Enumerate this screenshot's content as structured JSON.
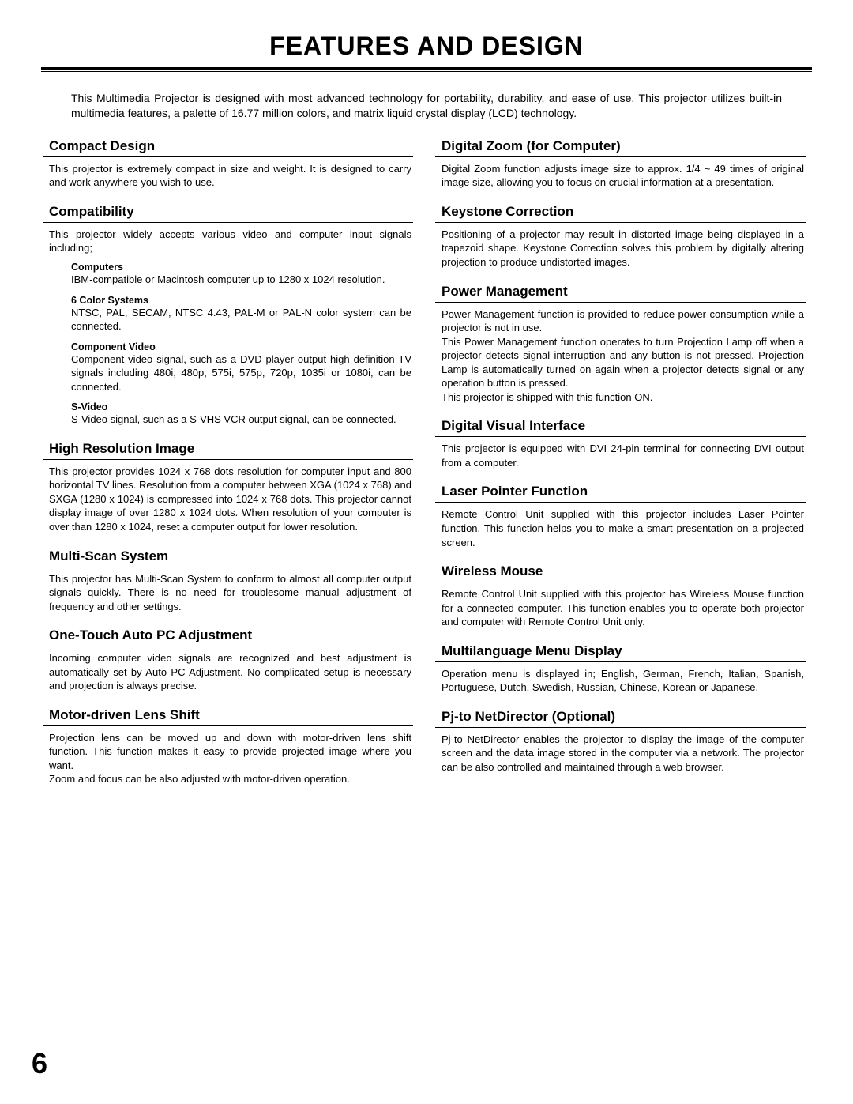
{
  "page_number": "6",
  "title": "FEATURES AND DESIGN",
  "intro": "This Multimedia Projector is designed with most advanced technology for portability, durability, and ease of use.  This projector utilizes built-in multimedia features, a palette of 16.77 million colors, and matrix liquid crystal display (LCD) technology.",
  "left": [
    {
      "heading": "Compact Design",
      "body": "This projector is extremely compact in size and weight.  It is designed to carry and work anywhere you wish to use."
    },
    {
      "heading": "Compatibility",
      "body": "This projector widely accepts various video and computer input signals including;",
      "subs": [
        {
          "title": "Computers",
          "body": "IBM-compatible or Macintosh computer up to 1280 x 1024 resolution."
        },
        {
          "title": "6 Color Systems",
          "body": "NTSC, PAL, SECAM, NTSC 4.43, PAL-M or PAL-N color system can be connected."
        },
        {
          "title": "Component Video",
          "body": "Component video signal, such as a DVD player output high definition TV signals including 480i, 480p, 575i, 575p, 720p, 1035i or 1080i, can be connected."
        },
        {
          "title": "S-Video",
          "body": "S-Video signal, such as a S-VHS VCR output signal, can be connected."
        }
      ]
    },
    {
      "heading": "High Resolution Image",
      "body": "This projector provides 1024 x 768 dots resolution for computer input and 800 horizontal TV lines.  Resolution from a computer between XGA (1024 x 768) and SXGA (1280 x 1024) is compressed into 1024 x 768 dots.  This projector cannot display image of over 1280 x 1024 dots.  When resolution of your computer is over than 1280 x 1024, reset a computer output for lower resolution."
    },
    {
      "heading": "Multi-Scan System",
      "body": "This projector has Multi-Scan System to conform to almost all computer output signals quickly.  There is no need for troublesome manual adjustment of frequency and other settings."
    },
    {
      "heading": "One-Touch Auto PC Adjustment",
      "body": "Incoming computer video signals are recognized and best adjustment is automatically set by Auto PC Adjustment.  No complicated setup is necessary and projection is always precise."
    },
    {
      "heading": "Motor-driven Lens Shift",
      "body": "Projection lens can be moved up and down with motor-driven lens shift function.  This function makes it easy to provide projected image where you want.\nZoom and focus can be also adjusted with motor-driven operation."
    }
  ],
  "right": [
    {
      "heading": "Digital Zoom (for Computer)",
      "body": "Digital Zoom function adjusts image size to approx. 1/4 ~ 49 times of original image size, allowing you to focus on crucial information at a presentation."
    },
    {
      "heading": "Keystone Correction",
      "body": "Positioning of a projector may result in distorted image being displayed in a trapezoid shape.  Keystone Correction solves this problem by digitally altering projection to produce undistorted images."
    },
    {
      "heading": "Power Management",
      "body": "Power Management function is provided to reduce power consumption while a projector is not in use.\nThis Power Management function operates to turn Projection Lamp off when a projector detects signal interruption and any button is not pressed.  Projection Lamp is automatically turned on again when a projector detects signal or any operation button is pressed.\nThis projector is shipped with this function ON."
    },
    {
      "heading": "Digital Visual Interface",
      "body": "This projector is equipped with DVI 24-pin terminal for connecting DVI output from a computer."
    },
    {
      "heading": "Laser Pointer Function",
      "body": "Remote Control Unit supplied with this projector includes Laser Pointer function.  This function helps you to make a smart presentation on a projected screen."
    },
    {
      "heading": "Wireless Mouse",
      "body": "Remote Control Unit supplied with this projector has Wireless Mouse function for a connected computer.  This function enables you to operate both projector and computer with Remote Control Unit only."
    },
    {
      "heading": "Multilanguage Menu Display",
      "body": "Operation menu is displayed in; English, German, French, Italian, Spanish, Portuguese, Dutch, Swedish, Russian, Chinese, Korean or Japanese."
    },
    {
      "heading": "Pj-to NetDirector (Optional)",
      "body": "Pj-to NetDirector enables the projector to display the image of the computer screen and the data image stored in the computer via a network. The projector can be also controlled and maintained through a web browser."
    }
  ]
}
